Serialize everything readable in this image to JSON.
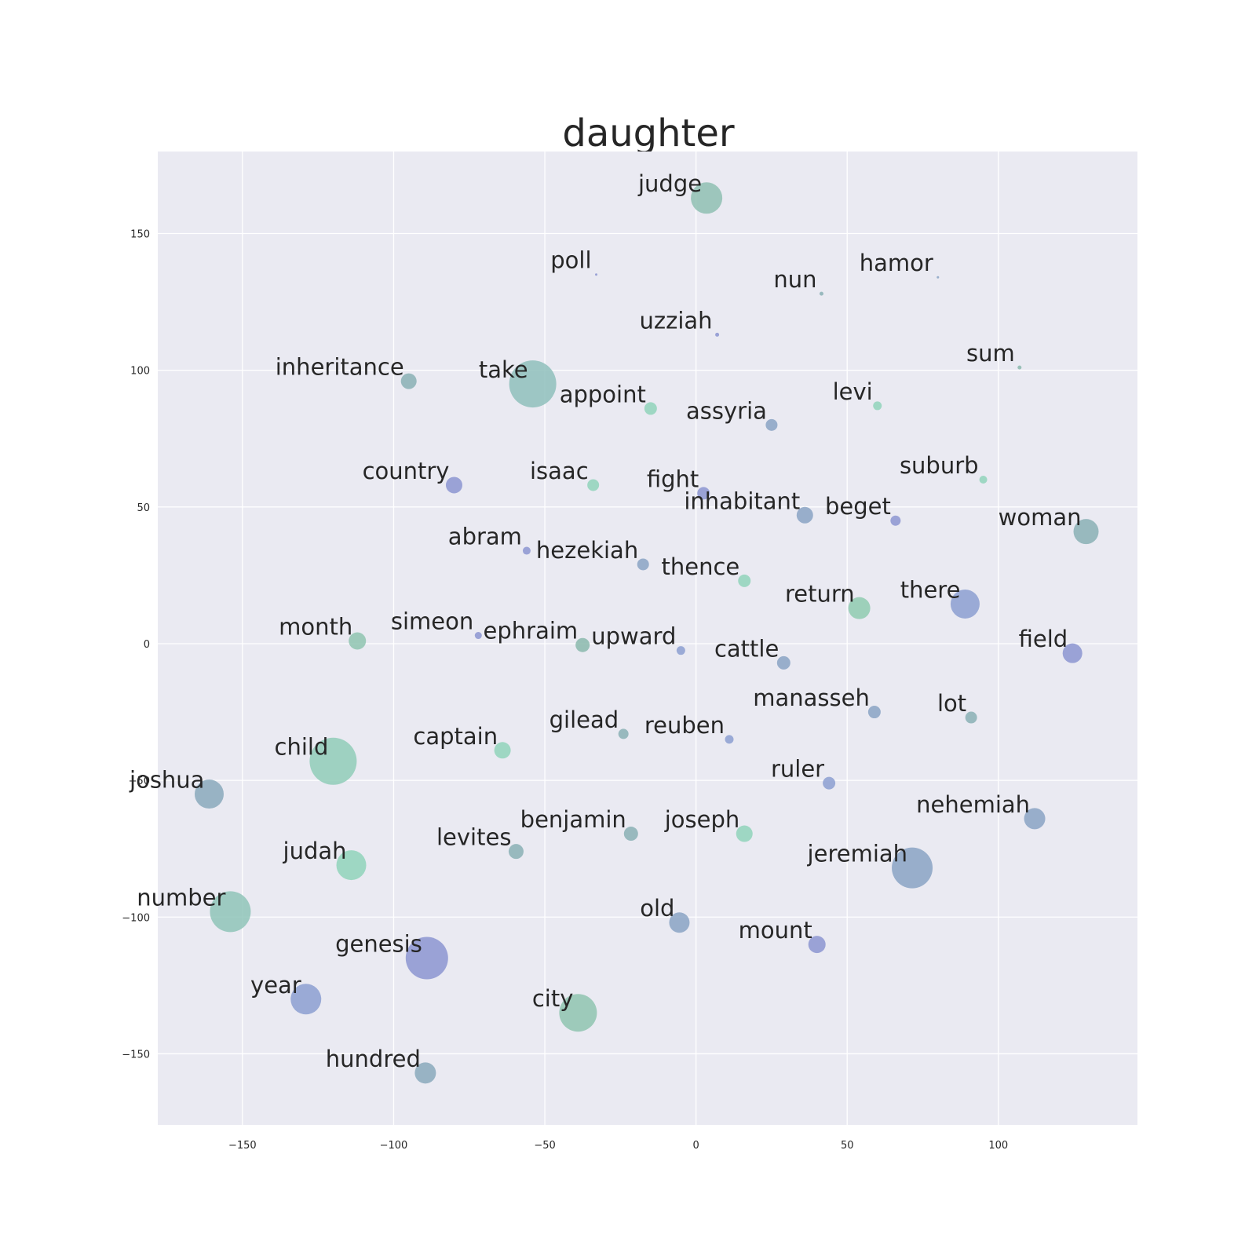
{
  "chart_data": {
    "type": "scatter",
    "title": "daughter",
    "xlabel": "",
    "ylabel": "",
    "xlim": [
      -178,
      146
    ],
    "ylim": [
      -176,
      180
    ],
    "xticks": [
      -150,
      -100,
      -50,
      0,
      50,
      100
    ],
    "yticks": [
      -150,
      -100,
      -50,
      0,
      50,
      100,
      150
    ],
    "xtick_labels": [
      "−150",
      "−100",
      "−50",
      "0",
      "50",
      "100"
    ],
    "ytick_labels": [
      "−150",
      "−100",
      "−50",
      "0",
      "50",
      "100",
      "150"
    ],
    "grid": true,
    "background_color": "#eaeaf2",
    "points": [
      {
        "label": "judge",
        "x": 3.5,
        "y": 163,
        "size": 40,
        "color": "#8fbfb3"
      },
      {
        "label": "poll",
        "x": -33,
        "y": 135,
        "size": 3,
        "color": "#8c95d1"
      },
      {
        "label": "hamor",
        "x": 80,
        "y": 134,
        "size": 3,
        "color": "#8aa3c4"
      },
      {
        "label": "nun",
        "x": 41.5,
        "y": 128,
        "size": 5,
        "color": "#89b0b5"
      },
      {
        "label": "uzziah",
        "x": 7,
        "y": 113,
        "size": 5,
        "color": "#8c95d1"
      },
      {
        "label": "sum",
        "x": 107,
        "y": 101,
        "size": 5,
        "color": "#89b8ad"
      },
      {
        "label": "inheritance",
        "x": -95,
        "y": 96,
        "size": 20,
        "color": "#89b0b5"
      },
      {
        "label": "take",
        "x": -54,
        "y": 95,
        "size": 60,
        "color": "#8fbfbc"
      },
      {
        "label": "appoint",
        "x": -15,
        "y": 86,
        "size": 16,
        "color": "#91d4bb"
      },
      {
        "label": "levi",
        "x": 60,
        "y": 87,
        "size": 11,
        "color": "#91d4bb"
      },
      {
        "label": "assyria",
        "x": 25,
        "y": 80,
        "size": 15,
        "color": "#8aa3c4"
      },
      {
        "label": "country",
        "x": -80,
        "y": 58,
        "size": 21,
        "color": "#8c95d1"
      },
      {
        "label": "isaac",
        "x": -34,
        "y": 58,
        "size": 15,
        "color": "#91d4bb"
      },
      {
        "label": "suburb",
        "x": 95,
        "y": 60,
        "size": 10,
        "color": "#91d4bb"
      },
      {
        "label": "fight",
        "x": 2.5,
        "y": 55,
        "size": 16,
        "color": "#8c95d1"
      },
      {
        "label": "inhabitant",
        "x": 36,
        "y": 47,
        "size": 21,
        "color": "#8aa3c4"
      },
      {
        "label": "beget",
        "x": 66,
        "y": 45,
        "size": 13,
        "color": "#8c95d1"
      },
      {
        "label": "woman",
        "x": 129,
        "y": 41,
        "size": 32,
        "color": "#89b0b5"
      },
      {
        "label": "abram",
        "x": -56,
        "y": 34,
        "size": 10,
        "color": "#8c95d1"
      },
      {
        "label": "hezekiah",
        "x": -17.5,
        "y": 29,
        "size": 15,
        "color": "#8aa3c4"
      },
      {
        "label": "thence",
        "x": 16,
        "y": 23,
        "size": 16,
        "color": "#91d4bb"
      },
      {
        "label": "return",
        "x": 54,
        "y": 13,
        "size": 28,
        "color": "#8fcbb0"
      },
      {
        "label": "there",
        "x": 89,
        "y": 14.5,
        "size": 37,
        "color": "#8c9fd1"
      },
      {
        "label": "month",
        "x": -112,
        "y": 1,
        "size": 22,
        "color": "#8fc4b0"
      },
      {
        "label": "simeon",
        "x": -72,
        "y": 3,
        "size": 9,
        "color": "#8c95d1"
      },
      {
        "label": "ephraim",
        "x": -37.5,
        "y": -0.5,
        "size": 18,
        "color": "#89b8ad"
      },
      {
        "label": "upward",
        "x": -5,
        "y": -2.5,
        "size": 11,
        "color": "#8c9fd1"
      },
      {
        "label": "cattle",
        "x": 29,
        "y": -7,
        "size": 17,
        "color": "#8aa3c4"
      },
      {
        "label": "field",
        "x": 124.5,
        "y": -3.5,
        "size": 25,
        "color": "#8c95d1"
      },
      {
        "label": "manasseh",
        "x": 59,
        "y": -25,
        "size": 16,
        "color": "#8aa3c4"
      },
      {
        "label": "lot",
        "x": 91,
        "y": -27,
        "size": 15,
        "color": "#89b0b5"
      },
      {
        "label": "gilead",
        "x": -24,
        "y": -33,
        "size": 13,
        "color": "#89b0b5"
      },
      {
        "label": "reuben",
        "x": 11,
        "y": -35,
        "size": 11,
        "color": "#8c9fd1"
      },
      {
        "label": "child",
        "x": -120,
        "y": -43,
        "size": 60,
        "color": "#91cdb8"
      },
      {
        "label": "captain",
        "x": -64,
        "y": -39,
        "size": 21,
        "color": "#91d4bb"
      },
      {
        "label": "ruler",
        "x": 44,
        "y": -51,
        "size": 16,
        "color": "#8c9fd1"
      },
      {
        "label": "joshua",
        "x": -161,
        "y": -55,
        "size": 37,
        "color": "#89a9bc"
      },
      {
        "label": "nehemiah",
        "x": 112,
        "y": -64,
        "size": 27,
        "color": "#8aa3c4"
      },
      {
        "label": "benjamin",
        "x": -21.5,
        "y": -69.5,
        "size": 18,
        "color": "#89b0b5"
      },
      {
        "label": "joseph",
        "x": 16,
        "y": -69.5,
        "size": 21,
        "color": "#91d4bb"
      },
      {
        "label": "levites",
        "x": -59.5,
        "y": -76,
        "size": 19,
        "color": "#89b0b5"
      },
      {
        "label": "judah",
        "x": -114,
        "y": -81,
        "size": 38,
        "color": "#91d4bb"
      },
      {
        "label": "jeremiah",
        "x": 71.5,
        "y": -82,
        "size": 52,
        "color": "#8aa3c4"
      },
      {
        "label": "number",
        "x": -154,
        "y": -98,
        "size": 52,
        "color": "#8fc4b8"
      },
      {
        "label": "old",
        "x": -5.5,
        "y": -102,
        "size": 26,
        "color": "#8aa3c4"
      },
      {
        "label": "mount",
        "x": 40,
        "y": -110,
        "size": 22,
        "color": "#8c95d1"
      },
      {
        "label": "genesis",
        "x": -89,
        "y": -115,
        "size": 54,
        "color": "#8c95d1"
      },
      {
        "label": "year",
        "x": -129,
        "y": -130,
        "size": 39,
        "color": "#8c9fd1"
      },
      {
        "label": "city",
        "x": -39,
        "y": -135,
        "size": 48,
        "color": "#8fc4b0"
      },
      {
        "label": "hundred",
        "x": -89.5,
        "y": -157,
        "size": 27,
        "color": "#89a9bc"
      }
    ]
  }
}
